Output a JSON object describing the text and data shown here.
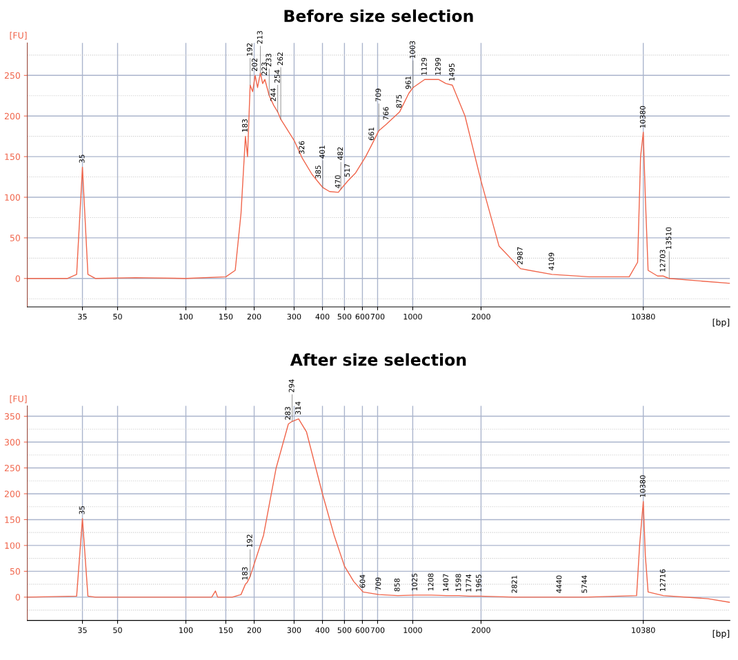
{
  "chart_data": [
    {
      "type": "line",
      "title": "Before size selection",
      "xlabel": "[bp]",
      "ylabel": "[FU]",
      "x": [
        20,
        30,
        33,
        35,
        37,
        40,
        60,
        100,
        150,
        165,
        175,
        183,
        187,
        192,
        197,
        202,
        207,
        213,
        218,
        223,
        233,
        244,
        254,
        262,
        300,
        326,
        360,
        385,
        401,
        430,
        470,
        482,
        517,
        560,
        620,
        661,
        709,
        766,
        875,
        961,
        1003,
        1129,
        1299,
        1400,
        1495,
        1700,
        2000,
        2400,
        2987,
        4109,
        6000,
        9000,
        9800,
        10100,
        10380,
        10600,
        10900,
        12000,
        12703,
        13510,
        25000
      ],
      "series": [
        {
          "color": "#f0644a",
          "values": [
            0,
            0,
            5,
            137,
            5,
            0,
            1,
            0,
            2,
            10,
            80,
            175,
            150,
            238,
            230,
            250,
            235,
            253,
            240,
            245,
            225,
            213,
            205,
            196,
            170,
            148,
            128,
            118,
            112,
            107,
            106,
            110,
            120,
            130,
            150,
            165,
            182,
            190,
            205,
            228,
            235,
            245,
            245,
            240,
            238,
            200,
            120,
            40,
            12,
            5,
            2,
            2,
            20,
            150,
            180,
            100,
            10,
            3,
            3,
            0,
            -6
          ]
        }
      ],
      "xlim": [
        20,
        25000
      ],
      "log": "x",
      "xticks": [
        35,
        50,
        100,
        150,
        200,
        300,
        400,
        500,
        600,
        700,
        1000,
        2000,
        10380
      ],
      "ylim": [
        -35,
        290
      ],
      "yticks": [
        0,
        50,
        100,
        150,
        200,
        250
      ],
      "grid": true,
      "marker": "none",
      "line_style": "solid",
      "annotations": [
        {
          "text": "35",
          "x": 35,
          "y": 137
        },
        {
          "text": "183",
          "x": 183,
          "y": 175
        },
        {
          "text": "192",
          "x": 192,
          "y": 238
        },
        {
          "text": "202",
          "x": 202,
          "y": 250
        },
        {
          "text": "213",
          "x": 213,
          "y": 253
        },
        {
          "text": "223",
          "x": 223,
          "y": 245
        },
        {
          "text": "233",
          "x": 233,
          "y": 225
        },
        {
          "text": "244",
          "x": 244,
          "y": 213
        },
        {
          "text": "254",
          "x": 254,
          "y": 205
        },
        {
          "text": "262",
          "x": 262,
          "y": 196
        },
        {
          "text": "326",
          "x": 326,
          "y": 148
        },
        {
          "text": "385",
          "x": 385,
          "y": 118
        },
        {
          "text": "401",
          "x": 401,
          "y": 112
        },
        {
          "text": "470",
          "x": 470,
          "y": 106
        },
        {
          "text": "482",
          "x": 482,
          "y": 110
        },
        {
          "text": "517",
          "x": 517,
          "y": 120
        },
        {
          "text": "661",
          "x": 661,
          "y": 165
        },
        {
          "text": "709",
          "x": 709,
          "y": 182
        },
        {
          "text": "766",
          "x": 766,
          "y": 190
        },
        {
          "text": "875",
          "x": 875,
          "y": 205
        },
        {
          "text": "961",
          "x": 961,
          "y": 228
        },
        {
          "text": "1003",
          "x": 1003,
          "y": 235
        },
        {
          "text": "1129",
          "x": 1129,
          "y": 245
        },
        {
          "text": "1299",
          "x": 1299,
          "y": 245
        },
        {
          "text": "1495",
          "x": 1495,
          "y": 238
        },
        {
          "text": "2987",
          "x": 2987,
          "y": 12
        },
        {
          "text": "4109",
          "x": 4109,
          "y": 5
        },
        {
          "text": "10380",
          "x": 10380,
          "y": 180
        },
        {
          "text": "12703",
          "x": 12703,
          "y": 3
        },
        {
          "text": "13510",
          "x": 13510,
          "y": 0
        }
      ]
    },
    {
      "type": "line",
      "title": "After size selection",
      "xlabel": "[bp]",
      "ylabel": "[FU]",
      "x": [
        20,
        33,
        35,
        37,
        40,
        60,
        100,
        130,
        135,
        138,
        160,
        175,
        183,
        186,
        192,
        220,
        250,
        283,
        294,
        314,
        340,
        400,
        450,
        500,
        550,
        604,
        709,
        858,
        1025,
        1208,
        1407,
        1598,
        1774,
        1965,
        2821,
        4440,
        5744,
        9700,
        10000,
        10380,
        10600,
        10900,
        12716,
        20000,
        25000
      ],
      "series": [
        {
          "color": "#f0644a",
          "values": [
            0,
            2,
            152,
            2,
            0,
            0,
            0,
            0,
            12,
            0,
            0,
            5,
            25,
            28,
            40,
            120,
            250,
            335,
            340,
            345,
            320,
            200,
            120,
            60,
            30,
            10,
            5,
            3,
            4,
            4,
            3,
            3,
            2,
            2,
            0,
            0,
            0,
            3,
            100,
            185,
            80,
            10,
            3,
            -3,
            -10
          ]
        }
      ],
      "xlim": [
        20,
        25000
      ],
      "log": "x",
      "xticks": [
        35,
        50,
        100,
        150,
        200,
        300,
        400,
        500,
        600,
        700,
        1000,
        2000,
        10380
      ],
      "ylim": [
        -45,
        370
      ],
      "yticks": [
        0,
        50,
        100,
        150,
        200,
        250,
        300,
        350
      ],
      "grid": true,
      "marker": "none",
      "line_style": "solid",
      "annotations": [
        {
          "text": "35",
          "x": 35,
          "y": 152
        },
        {
          "text": "183",
          "x": 183,
          "y": 25
        },
        {
          "text": "192",
          "x": 192,
          "y": 40
        },
        {
          "text": "283",
          "x": 283,
          "y": 335
        },
        {
          "text": "294",
          "x": 294,
          "y": 340
        },
        {
          "text": "314",
          "x": 314,
          "y": 345
        },
        {
          "text": "604",
          "x": 604,
          "y": 10
        },
        {
          "text": "709",
          "x": 709,
          "y": 5
        },
        {
          "text": "858",
          "x": 858,
          "y": 3
        },
        {
          "text": "1025",
          "x": 1025,
          "y": 4
        },
        {
          "text": "1208",
          "x": 1208,
          "y": 4
        },
        {
          "text": "1407",
          "x": 1407,
          "y": 3
        },
        {
          "text": "1598",
          "x": 1598,
          "y": 3
        },
        {
          "text": "1774",
          "x": 1774,
          "y": 2
        },
        {
          "text": "1965",
          "x": 1965,
          "y": 2
        },
        {
          "text": "2821",
          "x": 2821,
          "y": 0
        },
        {
          "text": "4440",
          "x": 4440,
          "y": 0
        },
        {
          "text": "5744",
          "x": 5744,
          "y": 0
        },
        {
          "text": "10380",
          "x": 10380,
          "y": 185
        },
        {
          "text": "12716",
          "x": 12716,
          "y": 3
        }
      ]
    }
  ]
}
